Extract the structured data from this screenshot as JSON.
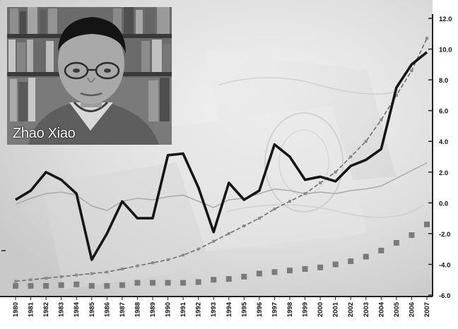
{
  "photo": {
    "caption": "Zhao Xiao"
  },
  "chart_data": {
    "type": "line",
    "y_axis": {
      "position": "right",
      "ticks": [
        "12.0",
        "10.0",
        "8.0",
        "6.0",
        "4.0",
        "2.0",
        "0.0",
        "-2.0",
        "-4.0",
        "-6.0"
      ],
      "range": [
        -6,
        12
      ]
    },
    "x_tick_labels": [
      "1980",
      "1981",
      "1982",
      "1983",
      "1984",
      "1985",
      "1986",
      "1987",
      "1988",
      "1989",
      "1990",
      "1991",
      "1992",
      "1993",
      "1994",
      "1995",
      "1996",
      "1997",
      "1998",
      "1999",
      "2000",
      "2001",
      "2002",
      "2003",
      "2004",
      "2005",
      "2006",
      "2007"
    ],
    "x_tick_labels_legible": false,
    "series": [
      {
        "style": "thick-black-line",
        "color": "#161616",
        "values": [
          0.2,
          0.8,
          2.0,
          1.5,
          0.6,
          -3.7,
          -2.0,
          0.1,
          -1.0,
          -1.0,
          3.1,
          3.2,
          1.0,
          -1.9,
          1.3,
          0.2,
          0.8,
          3.8,
          3.0,
          1.5,
          1.7,
          1.4,
          2.4,
          2.8,
          3.5,
          7.5,
          9.0,
          9.8
        ]
      },
      {
        "style": "thin-gray-line",
        "color": "#a6a6a6",
        "values": [
          -0.1,
          0.3,
          0.6,
          0.7,
          0.5,
          -0.2,
          -0.5,
          0.1,
          0.3,
          0.2,
          0.4,
          0.5,
          0.1,
          -0.3,
          0.2,
          0.3,
          0.6,
          0.9,
          0.8,
          0.6,
          0.7,
          0.6,
          0.8,
          0.9,
          1.1,
          1.6,
          2.1,
          2.6
        ]
      },
      {
        "style": "dashed-line-small-markers",
        "color": "#6e6e6e",
        "values": [
          -5.1,
          -5.0,
          -4.9,
          -4.8,
          -4.7,
          -4.6,
          -4.5,
          -4.3,
          -4.1,
          -3.9,
          -3.7,
          -3.4,
          -3.0,
          -2.5,
          -2.0,
          -1.5,
          -1.0,
          -0.4,
          0.1,
          0.6,
          1.3,
          2.0,
          3.0,
          4.0,
          5.4,
          7.0,
          8.6,
          10.7
        ]
      },
      {
        "style": "square-markers",
        "color": "#7a7a7a",
        "values": [
          -5.4,
          -5.4,
          -5.4,
          -5.35,
          -5.3,
          -5.4,
          -5.4,
          -5.35,
          -5.2,
          -5.2,
          -5.2,
          -5.2,
          -5.15,
          -5.0,
          -4.95,
          -4.8,
          -4.6,
          -4.5,
          -4.4,
          -4.3,
          -4.2,
          -4.0,
          -3.8,
          -3.5,
          -3.1,
          -2.6,
          -2.1,
          -1.4
        ]
      }
    ]
  }
}
